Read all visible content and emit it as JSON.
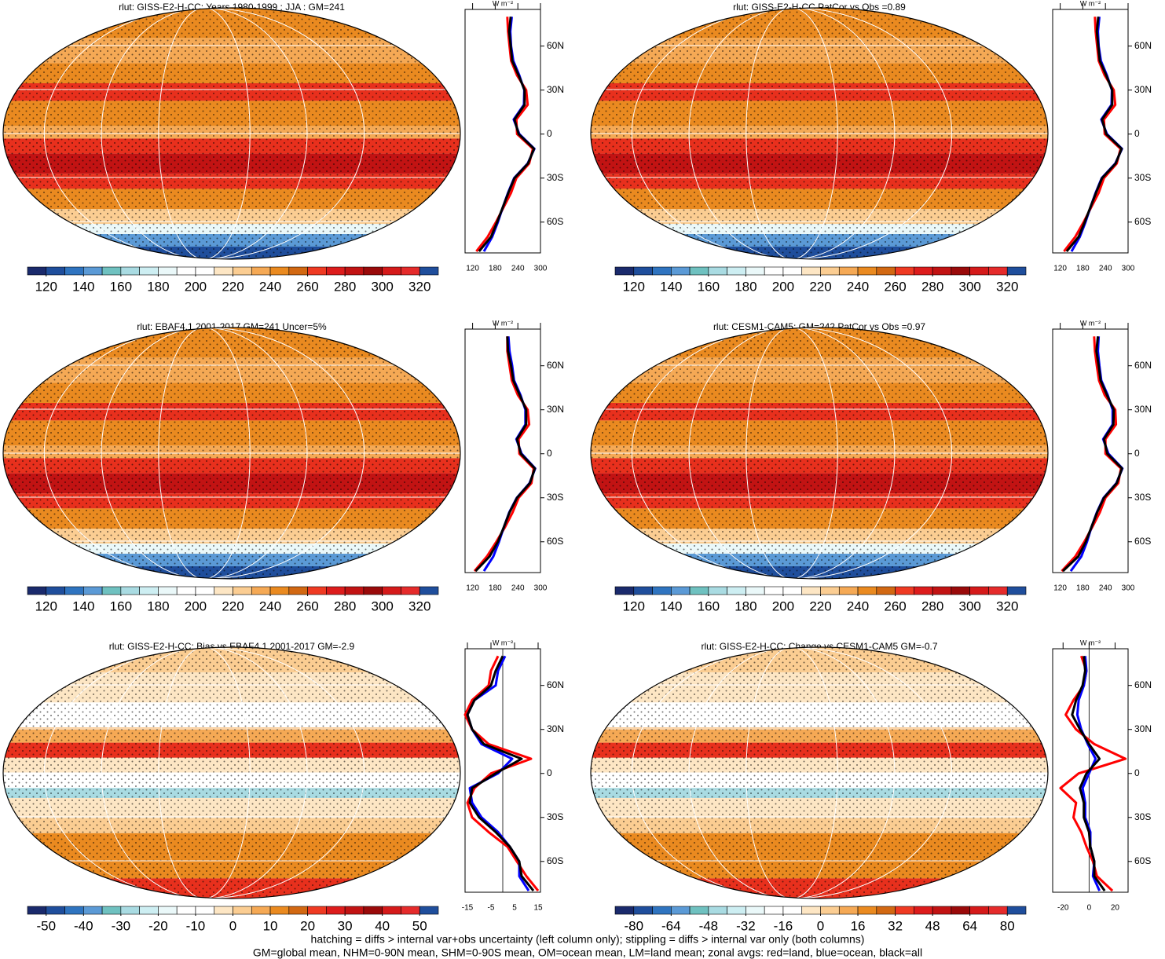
{
  "chart_data": [
    {
      "type": "map-zonal",
      "title": "rlut: GISS-E2-H-CC: Years 1980-1999 : JJA : GM=241",
      "colorbar": {
        "clim": [
          110,
          330
        ],
        "ticks": [
          120,
          140,
          160,
          180,
          200,
          220,
          240,
          260,
          280,
          300,
          320
        ]
      },
      "zonal": {
        "units": "W m⁻²",
        "xlim": [
          100,
          300
        ],
        "xticks": [
          120,
          180,
          240,
          300
        ],
        "ylim": [
          -81,
          85
        ],
        "yticks": [
          {
            "value": 60,
            "label": "60N"
          },
          {
            "value": 30,
            "label": "30N"
          },
          0,
          {
            "value": -30,
            "label": "30S"
          },
          {
            "value": -60,
            "label": "60S"
          }
        ],
        "y": [
          -80,
          -70,
          -60,
          -50,
          -40,
          -30,
          -20,
          -10,
          0,
          10,
          20,
          30,
          40,
          50,
          60,
          70,
          80
        ],
        "series": [
          {
            "color": "#ff0000",
            "values": [
              130,
              160,
              182,
              202,
              222,
              236,
              270,
              280,
              238,
              236,
              266,
              262,
              238,
              222,
              218,
              214,
              212
            ]
          },
          {
            "color": "#0000ff",
            "values": [
              150,
              172,
              187,
              200,
              214,
              230,
              266,
              284,
              244,
              229,
              256,
              257,
              244,
              228,
              222,
              220,
              224
            ]
          },
          {
            "color": "#000000",
            "values": [
              137,
              169,
              185,
              200,
              215,
              231,
              267,
              283,
              242,
              231,
              258,
              258,
              242,
              225,
              221,
              217,
              221
            ]
          }
        ]
      }
    },
    {
      "type": "map-zonal",
      "title": "rlut: GISS-E2-H-CC PatCor vs Obs =0.89",
      "colorbar": {
        "clim": [
          110,
          330
        ],
        "ticks": [
          120,
          140,
          160,
          180,
          200,
          220,
          240,
          260,
          280,
          300,
          320
        ]
      },
      "zonal": {
        "units": "W m⁻²",
        "xlim": [
          100,
          300
        ],
        "xticks": [
          120,
          180,
          240,
          300
        ],
        "ylim": [
          -81,
          85
        ],
        "yticks": [
          {
            "value": 60,
            "label": "60N"
          },
          {
            "value": 30,
            "label": "30N"
          },
          0,
          {
            "value": -30,
            "label": "30S"
          },
          {
            "value": -60,
            "label": "60S"
          }
        ],
        "y": [
          -80,
          -70,
          -60,
          -50,
          -40,
          -30,
          -20,
          -10,
          0,
          10,
          20,
          30,
          40,
          50,
          60,
          70,
          80
        ],
        "series": [
          {
            "color": "#ff0000",
            "values": [
              130,
              160,
              182,
              202,
              222,
              236,
              270,
              280,
              238,
              236,
              266,
              262,
              238,
              222,
              218,
              214,
              212
            ]
          },
          {
            "color": "#0000ff",
            "values": [
              150,
              172,
              187,
              200,
              214,
              230,
              266,
              284,
              244,
              229,
              256,
              257,
              244,
              228,
              222,
              220,
              224
            ]
          },
          {
            "color": "#000000",
            "values": [
              137,
              169,
              185,
              200,
              215,
              231,
              267,
              283,
              242,
              231,
              258,
              258,
              242,
              225,
              221,
              217,
              221
            ]
          }
        ]
      }
    },
    {
      "type": "map-zonal",
      "title": "rlut: EBAF4.1 2001-2017 GM=241 Uncer=5%",
      "colorbar": {
        "clim": [
          110,
          330
        ],
        "ticks": [
          120,
          140,
          160,
          180,
          200,
          220,
          240,
          260,
          280,
          300,
          320
        ]
      },
      "zonal": {
        "units": "W m⁻²",
        "xlim": [
          100,
          300
        ],
        "xticks": [
          120,
          180,
          240,
          300
        ],
        "ylim": [
          -81,
          85
        ],
        "yticks": [
          {
            "value": 60,
            "label": "60N"
          },
          {
            "value": 30,
            "label": "30N"
          },
          0,
          {
            "value": -30,
            "label": "30S"
          },
          {
            "value": -60,
            "label": "60S"
          }
        ],
        "y": [
          -80,
          -70,
          -60,
          -50,
          -40,
          -30,
          -20,
          -10,
          0,
          10,
          20,
          30,
          40,
          50,
          60,
          70,
          80
        ],
        "series": [
          {
            "color": "#ff0000",
            "values": [
              125,
              158,
              183,
              206,
              226,
              242,
              276,
              282,
              244,
              242,
              270,
              266,
              240,
              224,
              218,
              212,
              212
            ]
          },
          {
            "color": "#0000ff",
            "values": [
              150,
              175,
              190,
              203,
              217,
              237,
              271,
              286,
              250,
              236,
              260,
              260,
              247,
              230,
              225,
              218,
              215
            ]
          },
          {
            "color": "#000000",
            "values": [
              128,
              165,
              187,
              203,
              218,
              238,
              272,
              285,
              248,
              238,
              262,
              262,
              245,
              228,
              222,
              214,
              212
            ]
          }
        ]
      }
    },
    {
      "type": "map-zonal",
      "title": "rlut: CESM1-CAM5: GM=242 PatCor vs Obs =0.97",
      "colorbar": {
        "clim": [
          110,
          330
        ],
        "ticks": [
          120,
          140,
          160,
          180,
          200,
          220,
          240,
          260,
          280,
          300,
          320
        ]
      },
      "zonal": {
        "units": "W m⁻²",
        "xlim": [
          100,
          300
        ],
        "xticks": [
          120,
          180,
          240,
          300
        ],
        "ylim": [
          -81,
          85
        ],
        "yticks": [
          {
            "value": 60,
            "label": "60N"
          },
          {
            "value": 30,
            "label": "30N"
          },
          0,
          {
            "value": -30,
            "label": "30S"
          },
          {
            "value": -60,
            "label": "60S"
          }
        ],
        "y": [
          -80,
          -70,
          -60,
          -50,
          -40,
          -30,
          -20,
          -10,
          0,
          10,
          20,
          30,
          40,
          50,
          60,
          70,
          80
        ],
        "series": [
          {
            "color": "#ff0000",
            "values": [
              124,
              160,
              184,
              205,
              225,
              240,
              274,
              281,
              240,
              240,
              268,
              266,
              238,
              223,
              217,
              212,
              210
            ]
          },
          {
            "color": "#0000ff",
            "values": [
              148,
              176,
              191,
              203,
              217,
              235,
              269,
              285,
              248,
              234,
              259,
              259,
              246,
              229,
              224,
              220,
              222
            ]
          },
          {
            "color": "#000000",
            "values": [
              127,
              168,
              188,
              203,
              218,
              236,
              270,
              284,
              245,
              236,
              261,
              262,
              244,
              227,
              222,
              216,
              220
            ]
          }
        ]
      }
    },
    {
      "type": "map-zonal",
      "title": "rlut: GISS-E2-H-CC: Bias vs EBAF4.1 2001-2017 GM=-2.9",
      "colorbar": {
        "clim": [
          -55,
          55
        ],
        "ticks": [
          -50,
          -40,
          -30,
          -20,
          -10,
          0,
          10,
          20,
          30,
          40,
          50
        ]
      },
      "zonal": {
        "units": "W m⁻²",
        "xlim": [
          -16,
          16
        ],
        "xticks": [
          -15,
          -5,
          5,
          15
        ],
        "ylim": [
          -81,
          85
        ],
        "yticks": [
          {
            "value": 60,
            "label": "60N"
          },
          {
            "value": 30,
            "label": "30N"
          },
          0,
          {
            "value": -30,
            "label": "30S"
          },
          {
            "value": -60,
            "label": "60S"
          }
        ],
        "y": [
          -80,
          -70,
          -60,
          -50,
          -40,
          -30,
          -20,
          -10,
          0,
          10,
          20,
          30,
          40,
          50,
          60,
          70,
          80
        ],
        "series": [
          {
            "color": "#ff0000",
            "values": [
              15,
              10,
              6,
              2,
              -6,
              -13,
              -15,
              -12,
              -5,
              12,
              -6,
              -13,
              -16,
              -13,
              -6,
              -5,
              -2
            ]
          },
          {
            "color": "#0000ff",
            "values": [
              11,
              7,
              7,
              3,
              -2,
              -9,
              -13,
              -14,
              -2,
              4,
              -9,
              -13,
              -15,
              -12,
              -3,
              -2,
              1
            ]
          },
          {
            "color": "#000000",
            "values": [
              13,
              8,
              7,
              3,
              -3,
              -10,
              -14,
              -13,
              -3,
              8,
              -8,
              -13,
              -15,
              -12,
              -5,
              -3,
              0
            ]
          }
        ]
      }
    },
    {
      "type": "map-zonal",
      "title": "rlut: GISS-E2-H-CC: Change vs CESM1-CAM5 GM=-0.7",
      "colorbar": {
        "clim": [
          -88,
          88
        ],
        "ticks": [
          -80,
          -64,
          -48,
          -32,
          -16,
          0,
          16,
          32,
          48,
          64,
          80
        ]
      },
      "zonal": {
        "units": "W m⁻²",
        "xlim": [
          -28,
          30
        ],
        "xticks": [
          -20,
          0,
          20
        ],
        "ylim": [
          -81,
          85
        ],
        "yticks": [
          {
            "value": 60,
            "label": "60N"
          },
          {
            "value": 30,
            "label": "30N"
          },
          0,
          {
            "value": -30,
            "label": "30S"
          },
          {
            "value": -60,
            "label": "60S"
          }
        ],
        "y": [
          -80,
          -70,
          -60,
          -50,
          -40,
          -30,
          -20,
          -10,
          0,
          10,
          20,
          30,
          40,
          50,
          60,
          70,
          80
        ],
        "series": [
          {
            "color": "#ff0000",
            "values": [
              18,
              6,
              3,
              -2,
              -6,
              -12,
              -10,
              -22,
              -8,
              28,
              4,
              -10,
              -18,
              -12,
              -4,
              -2,
              -6
            ]
          },
          {
            "color": "#0000ff",
            "values": [
              8,
              3,
              4,
              1,
              1,
              -3,
              -3,
              -5,
              0,
              5,
              -1,
              -6,
              -9,
              -8,
              -4,
              -2,
              -3
            ]
          },
          {
            "color": "#000000",
            "values": [
              12,
              4,
              4,
              1,
              0,
              -4,
              -4,
              -7,
              -2,
              8,
              0,
              -7,
              -13,
              -10,
              -5,
              -3,
              -4
            ]
          }
        ]
      }
    }
  ],
  "notes": [
    "hatching = diffs > internal var+obs uncertainty (left column only); stippling = diffs > internal var only (both columns)",
    "GM=global mean, NHM=0-90N mean, SHM=0-90S mean, OM=ocean mean, LM=land mean; zonal avgs: red=land, blue=ocean, black=all"
  ]
}
